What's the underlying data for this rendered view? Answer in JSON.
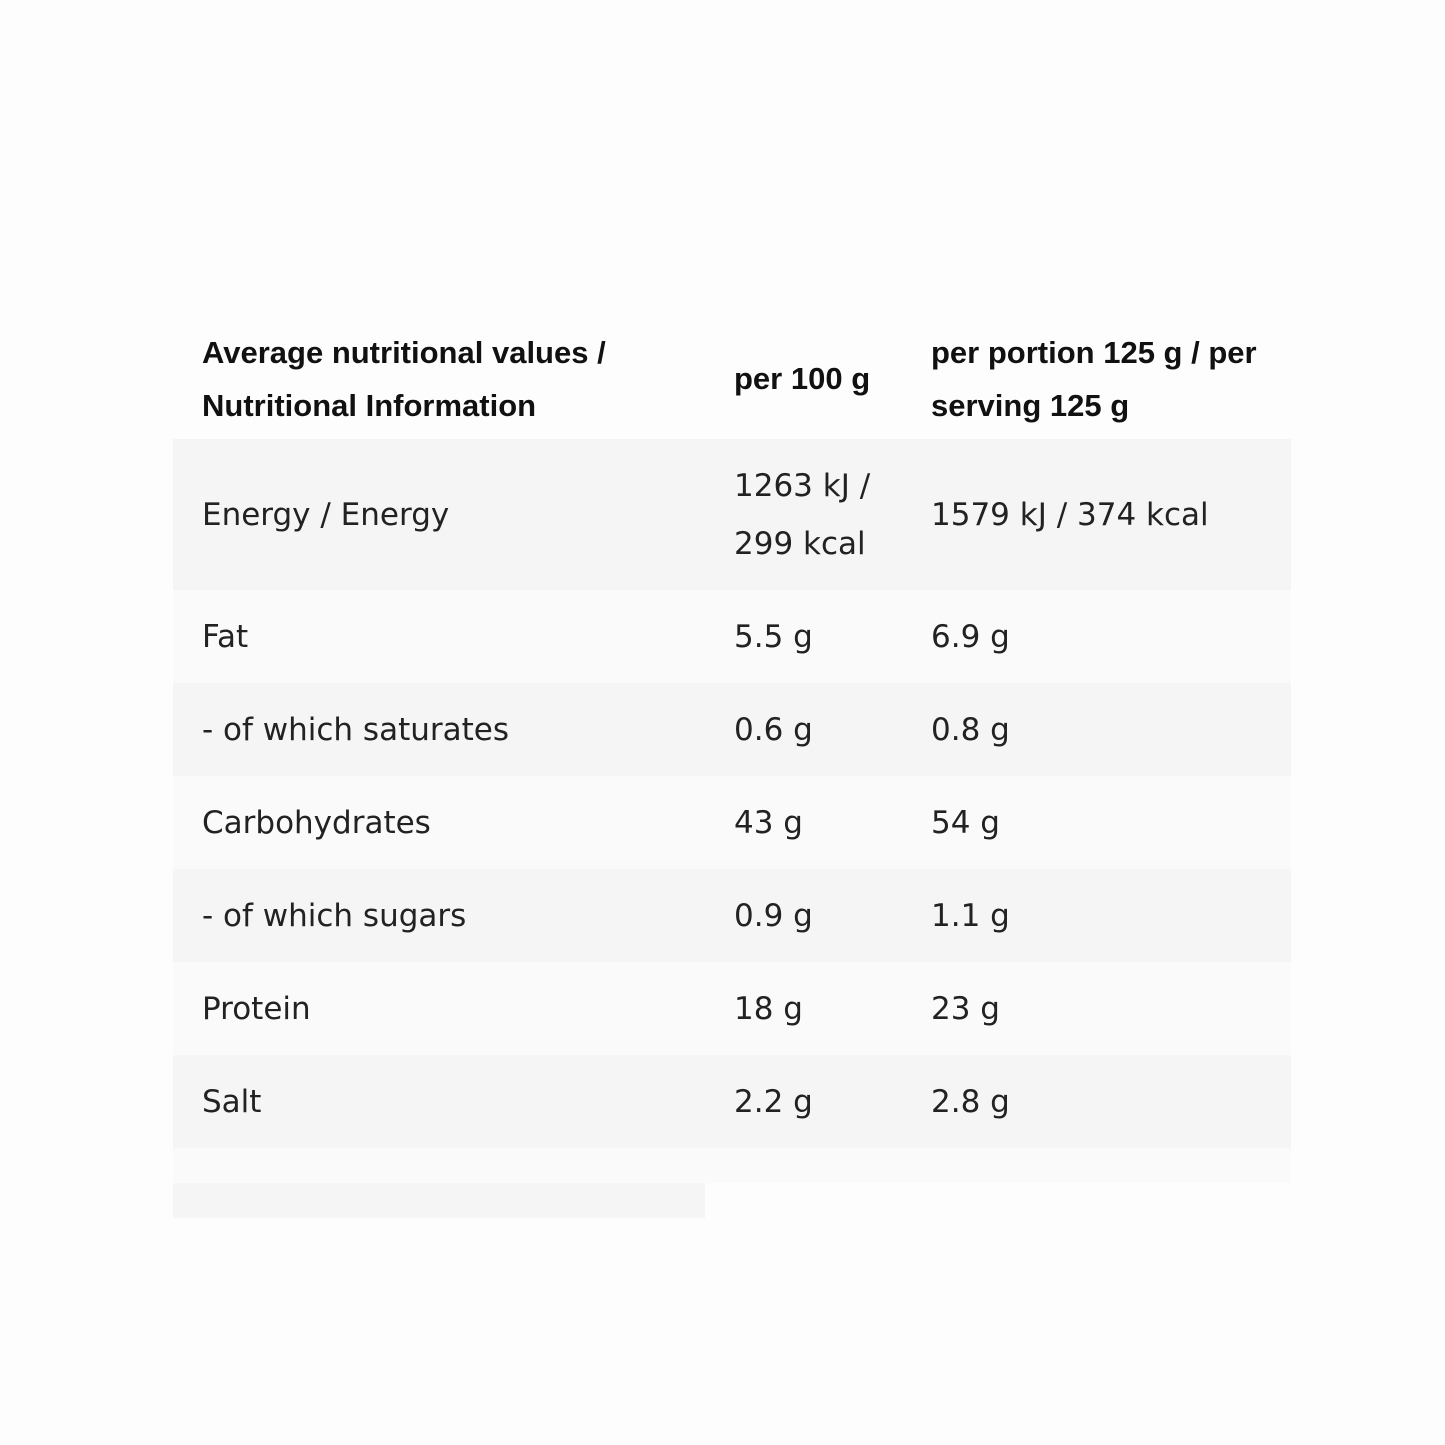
{
  "table": {
    "headers": [
      "Average nutritional values / Nutritional Information",
      "per 100 g",
      "per portion 125 g / per serving 125 g"
    ],
    "rows": [
      {
        "nutrient": "Energy / Energy",
        "per_100g": "1263 kJ / 299 kcal",
        "per_portion": "1579 kJ / 374 kcal"
      },
      {
        "nutrient": "Fat",
        "per_100g": "5.5 g",
        "per_portion": "6.9 g"
      },
      {
        "nutrient": "- of which saturates",
        "per_100g": "0.6 g",
        "per_portion": "0.8 g"
      },
      {
        "nutrient": "Carbohydrates",
        "per_100g": "43 g",
        "per_portion": "54 g"
      },
      {
        "nutrient": "- of which sugars",
        "per_100g": "0.9 g",
        "per_portion": "1.1 g"
      },
      {
        "nutrient": "Protein",
        "per_100g": "18 g",
        "per_portion": "23 g"
      },
      {
        "nutrient": "Salt",
        "per_100g": "2.2 g",
        "per_portion": "2.8 g"
      }
    ]
  }
}
